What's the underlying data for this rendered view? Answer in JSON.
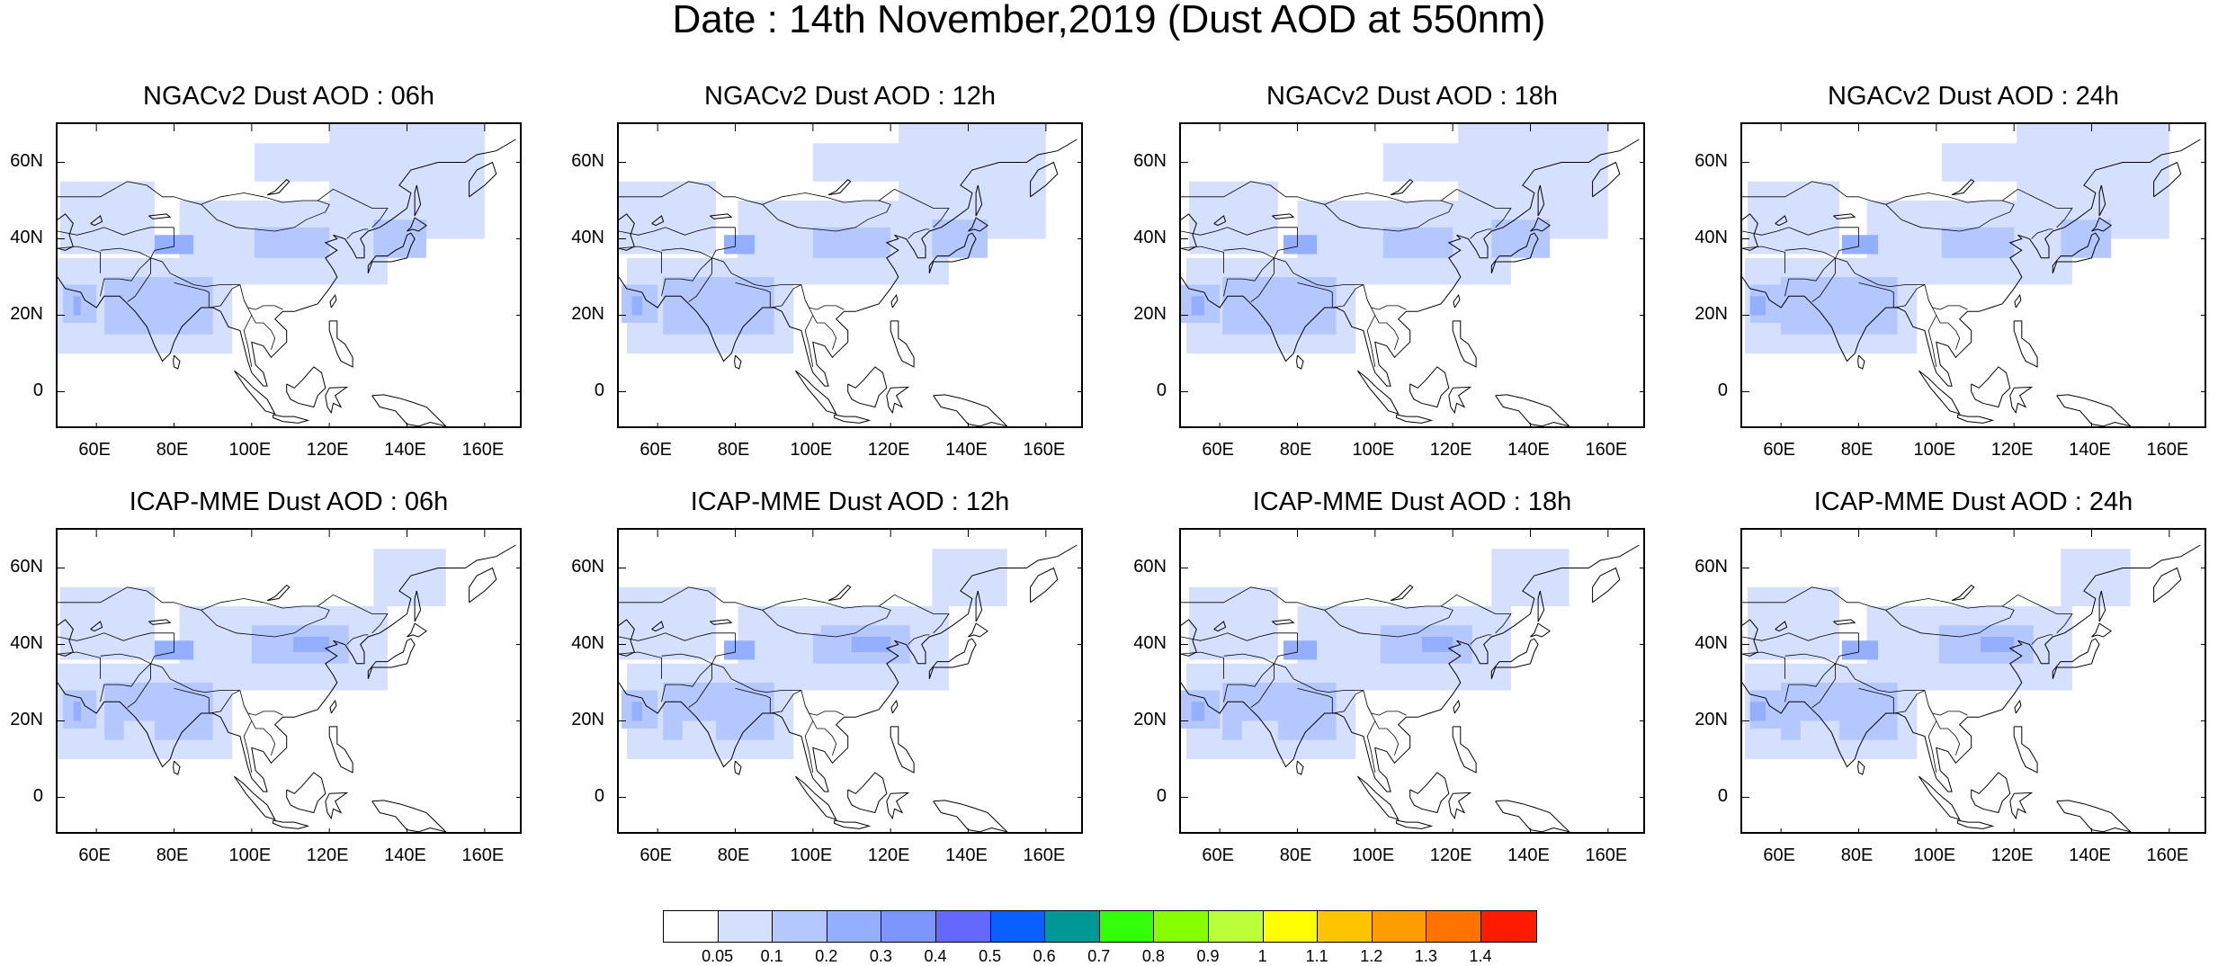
{
  "title": "Date : 14th November,2019 (Dust AOD at 550nm)",
  "panels": [
    {
      "title": "NGACv2 Dust AOD : 06h",
      "model": "NGACv2",
      "lead": "06h"
    },
    {
      "title": "NGACv2 Dust AOD : 12h",
      "model": "NGACv2",
      "lead": "12h"
    },
    {
      "title": "NGACv2 Dust AOD : 18h",
      "model": "NGACv2",
      "lead": "18h"
    },
    {
      "title": "NGACv2 Dust AOD : 24h",
      "model": "NGACv2",
      "lead": "24h"
    },
    {
      "title": "ICAP-MME Dust AOD : 06h",
      "model": "ICAP-MME",
      "lead": "06h"
    },
    {
      "title": "ICAP-MME Dust AOD : 12h",
      "model": "ICAP-MME",
      "lead": "12h"
    },
    {
      "title": "ICAP-MME Dust AOD : 18h",
      "model": "ICAP-MME",
      "lead": "18h"
    },
    {
      "title": "ICAP-MME Dust AOD : 24h",
      "model": "ICAP-MME",
      "lead": "24h"
    }
  ],
  "axes": {
    "x_ticks": [
      "60E",
      "80E",
      "100E",
      "120E",
      "140E",
      "160E"
    ],
    "x_tick_values": [
      60,
      80,
      100,
      120,
      140,
      160
    ],
    "x_range": [
      50,
      170
    ],
    "y_ticks": [
      "60N",
      "40N",
      "20N",
      "0"
    ],
    "y_tick_values": [
      60,
      40,
      20,
      0
    ],
    "y_range": [
      -10,
      70
    ]
  },
  "colorbar": {
    "colors": [
      "#ffffff",
      "#d5e0ff",
      "#b4c7ff",
      "#94afff",
      "#7c95ff",
      "#6568ff",
      "#0a60ff",
      "#009797",
      "#34ff0b",
      "#86ff00",
      "#bbff3a",
      "#ffff00",
      "#ffc400",
      "#ff9d00",
      "#ff7400",
      "#ff1a00"
    ],
    "labels": [
      "0.05",
      "0.1",
      "0.2",
      "0.3",
      "0.4",
      "0.5",
      "0.6",
      "0.7",
      "0.8",
      "0.9",
      "1",
      "1.1",
      "1.2",
      "1.3",
      "1.4"
    ]
  }
}
